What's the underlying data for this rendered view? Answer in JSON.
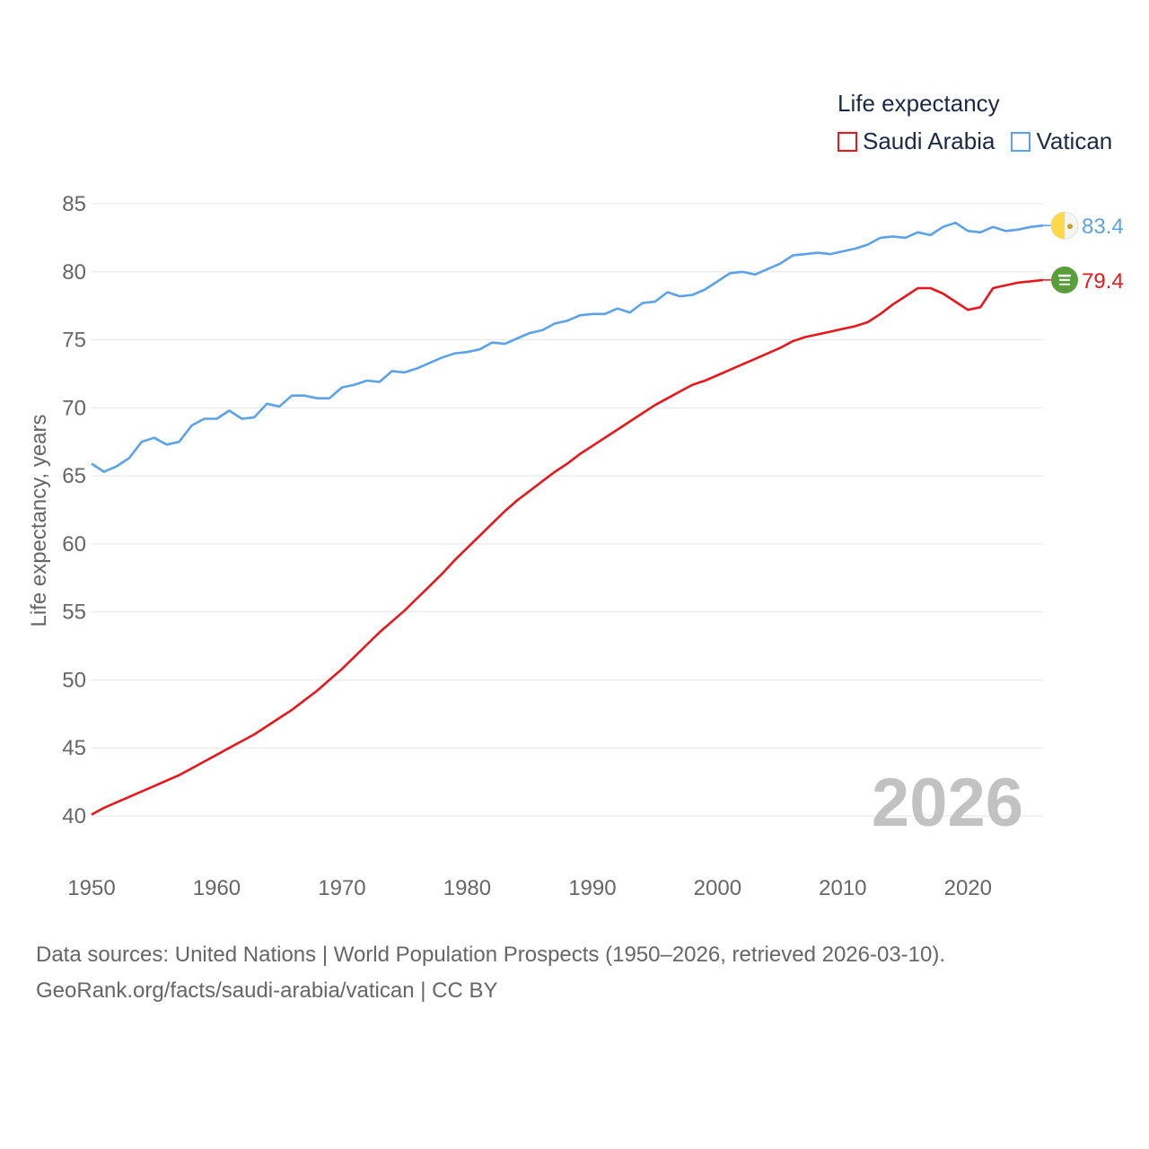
{
  "legend": {
    "title": "Life expectancy",
    "items": [
      {
        "label": "Saudi Arabia",
        "color": "#e8171b"
      },
      {
        "label": "Vatican",
        "color": "#5ca2e8"
      }
    ]
  },
  "source": {
    "line1": "Data sources: United Nations | World Population Prospects (1950–2026, retrieved 2026-03-10).",
    "line2": "GeoRank.org/facts/saudi-arabia/vatican | CC BY"
  },
  "chart_data": {
    "type": "line",
    "title": "Life expectancy",
    "xlabel": "",
    "ylabel": "Life expectancy, years",
    "xlim": [
      1950,
      2026
    ],
    "ylim": [
      38,
      87
    ],
    "xticks": [
      1950,
      1960,
      1970,
      1980,
      1990,
      2000,
      2010,
      2020
    ],
    "yticks": [
      40,
      45,
      50,
      55,
      60,
      65,
      70,
      75,
      80,
      85
    ],
    "year_label": "2026",
    "x": [
      1950,
      1951,
      1952,
      1953,
      1954,
      1955,
      1956,
      1957,
      1958,
      1959,
      1960,
      1961,
      1962,
      1963,
      1964,
      1965,
      1966,
      1967,
      1968,
      1969,
      1970,
      1971,
      1972,
      1973,
      1974,
      1975,
      1976,
      1977,
      1978,
      1979,
      1980,
      1981,
      1982,
      1983,
      1984,
      1985,
      1986,
      1987,
      1988,
      1989,
      1990,
      1991,
      1992,
      1993,
      1994,
      1995,
      1996,
      1997,
      1998,
      1999,
      2000,
      2001,
      2002,
      2003,
      2004,
      2005,
      2006,
      2007,
      2008,
      2009,
      2010,
      2011,
      2012,
      2013,
      2014,
      2015,
      2016,
      2017,
      2018,
      2019,
      2020,
      2021,
      2022,
      2023,
      2024,
      2025,
      2026
    ],
    "series": [
      {
        "name": "Saudi Arabia",
        "color": "#e8171b",
        "end_label": "79.4",
        "values": [
          40.1,
          40.6,
          41.0,
          41.4,
          41.8,
          42.2,
          42.6,
          43.0,
          43.5,
          44.0,
          44.5,
          45.0,
          45.5,
          46.0,
          46.6,
          47.2,
          47.8,
          48.5,
          49.2,
          50.0,
          50.8,
          51.7,
          52.6,
          53.5,
          54.3,
          55.1,
          56.0,
          56.9,
          57.8,
          58.8,
          59.7,
          60.6,
          61.5,
          62.4,
          63.2,
          63.9,
          64.6,
          65.3,
          65.9,
          66.6,
          67.2,
          67.8,
          68.4,
          69.0,
          69.6,
          70.2,
          70.7,
          71.2,
          71.7,
          72.0,
          72.4,
          72.8,
          73.2,
          73.6,
          74.0,
          74.4,
          74.9,
          75.2,
          75.4,
          75.6,
          75.8,
          76.0,
          76.3,
          76.9,
          77.6,
          78.2,
          78.8,
          78.8,
          78.4,
          77.8,
          77.2,
          77.4,
          78.8,
          79.0,
          79.2,
          79.3,
          79.4
        ]
      },
      {
        "name": "Vatican",
        "color": "#5ca2e8",
        "end_label": "83.4",
        "values": [
          65.9,
          65.3,
          65.7,
          66.3,
          67.5,
          67.8,
          67.3,
          67.5,
          68.7,
          69.2,
          69.2,
          69.8,
          69.2,
          69.3,
          70.3,
          70.1,
          70.9,
          70.9,
          70.7,
          70.7,
          71.5,
          71.7,
          72.0,
          71.9,
          72.7,
          72.6,
          72.9,
          73.3,
          73.7,
          74.0,
          74.1,
          74.3,
          74.8,
          74.7,
          75.1,
          75.5,
          75.7,
          76.2,
          76.4,
          76.8,
          76.9,
          76.9,
          77.3,
          77.0,
          77.7,
          77.8,
          78.5,
          78.2,
          78.3,
          78.7,
          79.3,
          79.9,
          80.0,
          79.8,
          80.2,
          80.6,
          81.2,
          81.3,
          81.4,
          81.3,
          81.5,
          81.7,
          82.0,
          82.5,
          82.6,
          82.5,
          82.9,
          82.7,
          83.3,
          83.6,
          83.0,
          82.9,
          83.3,
          83.0,
          83.1,
          83.3,
          83.4
        ]
      }
    ]
  }
}
